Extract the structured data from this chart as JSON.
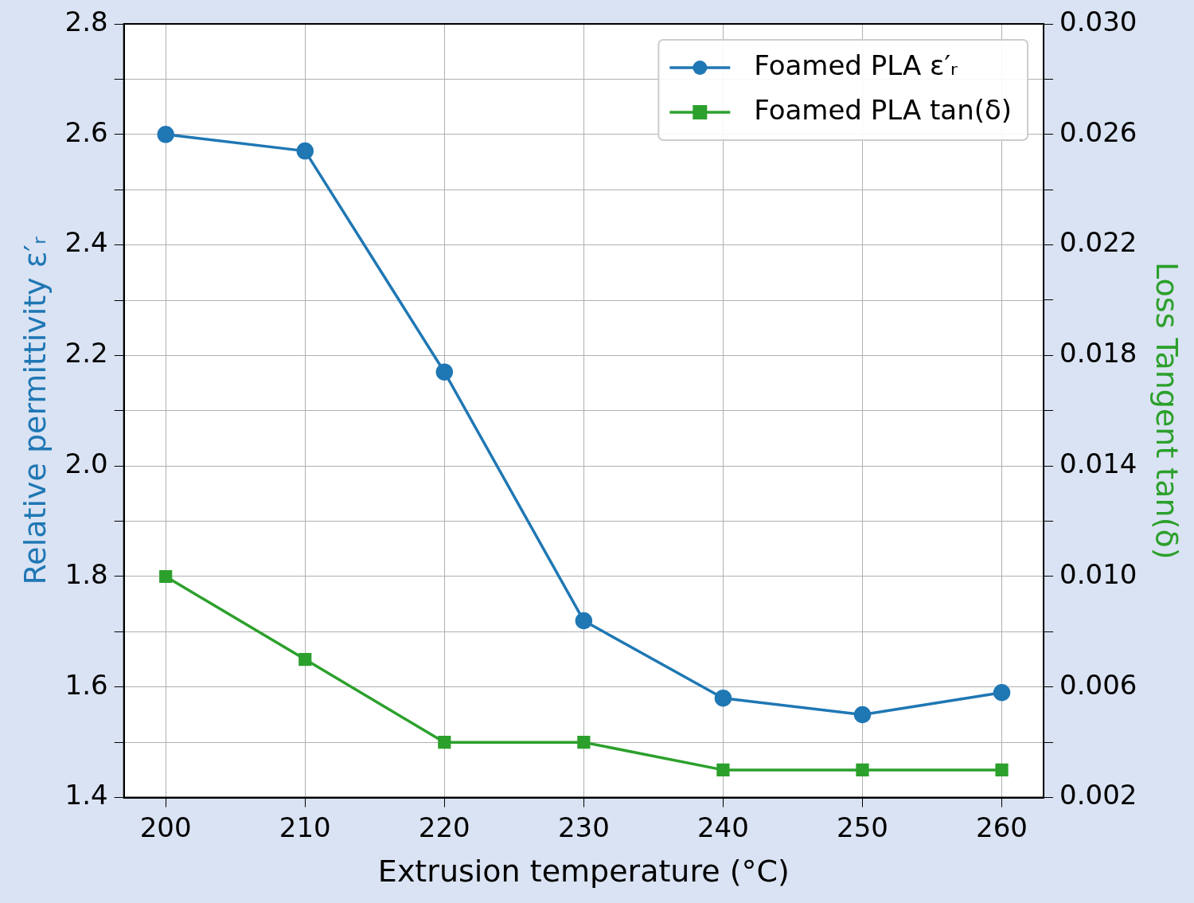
{
  "chart_data": {
    "type": "line",
    "xlabel": "Extrusion temperature (°C)",
    "ylabel": "Relative permittivity ε′ᵣ",
    "y2label": "Loss Tangent tan(δ)",
    "x": [
      200,
      210,
      220,
      230,
      240,
      250,
      260
    ],
    "series": [
      {
        "name": "Foamed PLA ε′ᵣ",
        "color": "#1f77b4",
        "marker": "circle",
        "values": [
          2.6,
          2.57,
          2.17,
          1.72,
          1.58,
          1.55,
          1.59
        ]
      },
      {
        "name": "Foamed PLA tan(δ)",
        "color": "#2ca02c",
        "marker": "square",
        "axis": "y2",
        "values": [
          0.01,
          0.007,
          0.004,
          0.004,
          0.003,
          0.003,
          0.003
        ]
      }
    ],
    "xlim": [
      197,
      263
    ],
    "xticks": [
      200,
      210,
      220,
      230,
      240,
      250,
      260
    ],
    "ylim": [
      1.4,
      2.8
    ],
    "yticks": [
      1.4,
      {
        "value": 1.5,
        "label": null
      },
      1.6,
      {
        "value": 1.7,
        "label": null
      },
      1.8,
      {
        "value": 1.9,
        "label": null
      },
      {
        "value": 2,
        "label": "2.0"
      },
      {
        "value": 2.1,
        "label": null
      },
      2.2,
      {
        "value": 2.3,
        "label": null
      },
      2.4,
      {
        "value": 2.5,
        "label": null
      },
      2.6,
      {
        "value": 2.7,
        "label": null
      },
      2.8
    ],
    "y2lim": [
      0.002,
      0.03
    ],
    "y2ticks": [
      0.002,
      {
        "value": 0.004,
        "label": null
      },
      0.006,
      {
        "value": 0.008,
        "label": null
      },
      {
        "value": 0.01,
        "label": "0.010"
      },
      {
        "value": 0.012,
        "label": null
      },
      0.014,
      {
        "value": 0.016,
        "label": null
      },
      0.018,
      {
        "value": 0.02,
        "label": null
      },
      0.022,
      {
        "value": 0.024,
        "label": null
      },
      0.026,
      {
        "value": 0.028,
        "label": null
      },
      {
        "value": 0.03,
        "label": "0.030"
      }
    ],
    "grid": true,
    "legend": "top right",
    "line_style": "solid"
  }
}
